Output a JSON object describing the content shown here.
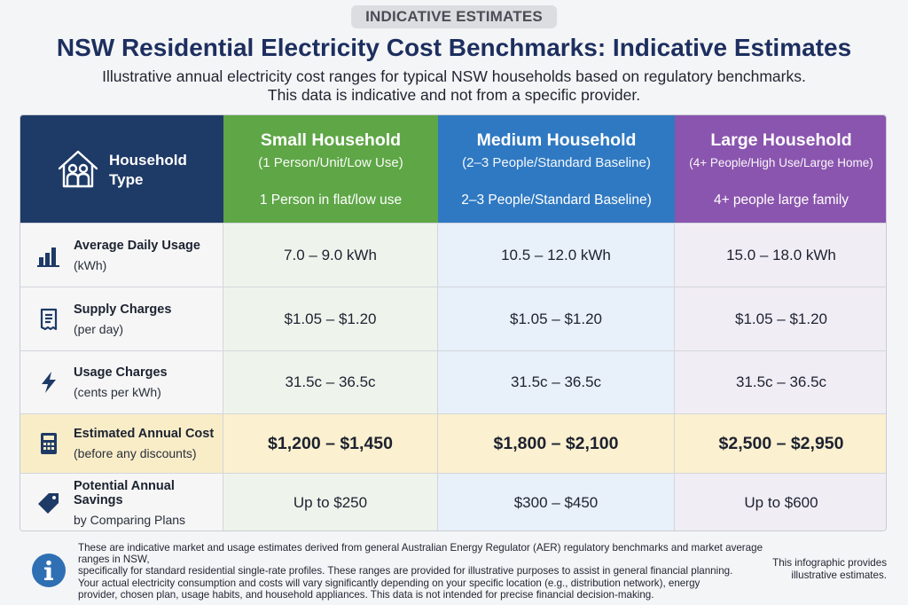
{
  "badge": "INDICATIVE ESTIMATES",
  "title": "NSW Residential Electricity Cost Benchmarks: Indicative Estimates",
  "subtitle_line1": "Illustrative annual electricity cost ranges for typical NSW households based on regulatory benchmarks.",
  "subtitle_line2": "This data is indicative and not from a specific provider.",
  "header": {
    "type_label_line1": "Household",
    "type_label_line2": "Type",
    "type_icon": "house-family-icon",
    "small": {
      "title": "Small Household",
      "sub": "(1 Person/Unit/Low Use)",
      "desc": "1 Person in flat/low use",
      "color": "#5ea646"
    },
    "medium": {
      "title": "Medium Household",
      "sub": "(2–3 People/Standard Baseline)",
      "desc": "2–3 People/Standard Baseline)",
      "color": "#2f79c2"
    },
    "large": {
      "title": "Large Household",
      "sub": "(4+ People/High Use/Large Home)",
      "desc": "4+ people large family",
      "color": "#8a55ae"
    }
  },
  "rows": [
    {
      "icon": "bar-chart-icon",
      "label": "Average Daily Usage",
      "sub": "(kWh)",
      "small": "7.0 – 9.0 kWh",
      "medium": "10.5 – 12.0 kWh",
      "large": "15.0 – 18.0 kWh"
    },
    {
      "icon": "receipt-icon",
      "label": "Supply Charges",
      "sub": "(per day)",
      "small": "$1.05 – $1.20",
      "medium": "$1.05 – $1.20",
      "large": "$1.05 – $1.20"
    },
    {
      "icon": "lightning-icon",
      "label": "Usage Charges",
      "sub": "(cents per kWh)",
      "small": "31.5c – 36.5c",
      "medium": "31.5c – 36.5c",
      "large": "31.5c – 36.5c"
    },
    {
      "icon": "calculator-icon",
      "label": "Estimated Annual Cost",
      "sub": "(before any discounts)",
      "small": "$1,200 – $1,450",
      "medium": "$1,800 – $2,100",
      "large": "$2,500 – $2,950"
    },
    {
      "icon": "price-tag-icon",
      "label": "Potential Annual Savings",
      "sub": "by Comparing Plans",
      "small": "Up to $250",
      "medium": "$300 – $450",
      "large": "Up to $600"
    }
  ],
  "footer": {
    "icon": "info-icon",
    "line1": "These are indicative market and usage estimates derived from general Australian Energy Regulator (AER) regulatory benchmarks and market average ranges in NSW,",
    "line2": "specifically for standard residential single-rate profiles. These ranges are provided for illustrative purposes to assist in general financial planning.",
    "line3": "Your actual electricity consumption and costs will vary significantly depending on your specific location (e.g., distribution network), energy",
    "line4": "provider, chosen plan, usage habits, and household appliances. This data is not intended for precise financial decision-making.",
    "note_line1": "This infographic provides",
    "note_line2": "illustrative estimates."
  }
}
